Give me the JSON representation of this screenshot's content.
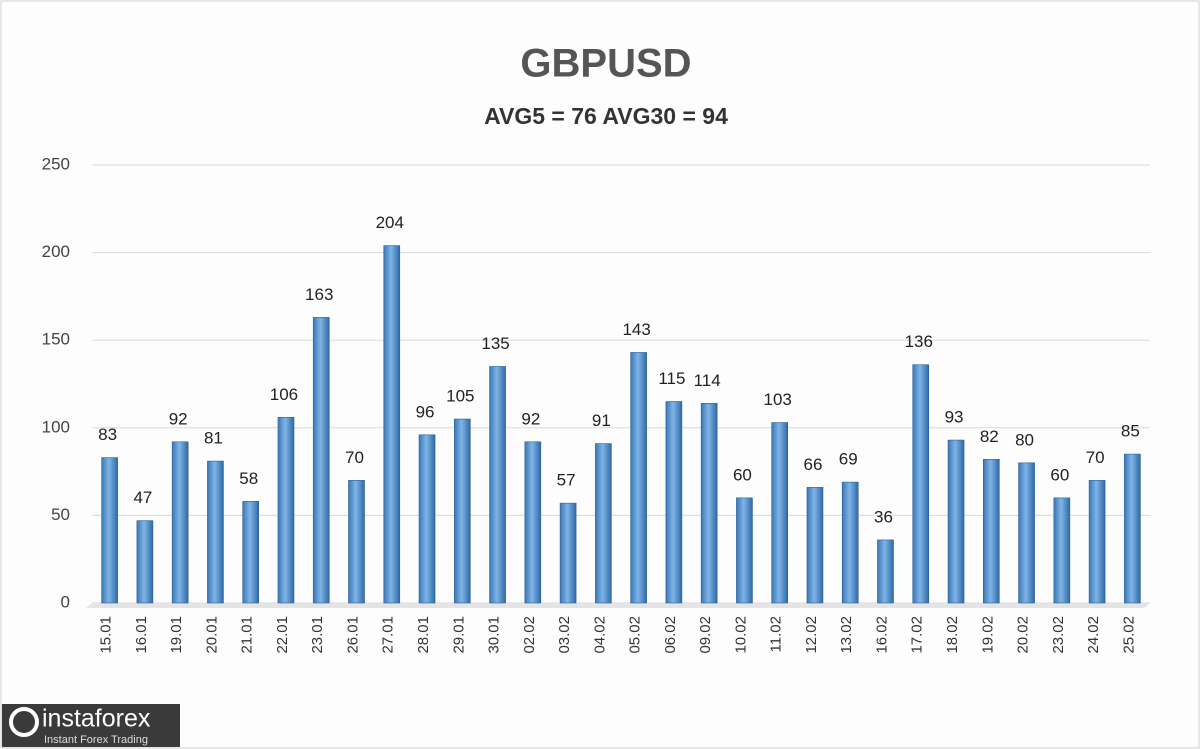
{
  "chart_data": {
    "type": "bar",
    "title": "GBPUSD",
    "subtitle": "AVG5 = 76 AVG30 = 94",
    "categories": [
      "15.01",
      "16.01",
      "19.01",
      "20.01",
      "21.01",
      "22.01",
      "23.01",
      "26.01",
      "27.01",
      "28.01",
      "29.01",
      "30.01",
      "02.02",
      "03.02",
      "04.02",
      "05.02",
      "06.02",
      "09.02",
      "10.02",
      "11.02",
      "12.02",
      "13.02",
      "16.02",
      "17.02",
      "18.02",
      "19.02",
      "20.02",
      "23.02",
      "24.02",
      "25.02"
    ],
    "values": [
      83,
      47,
      92,
      81,
      58,
      106,
      163,
      70,
      204,
      96,
      105,
      135,
      92,
      57,
      91,
      143,
      115,
      114,
      60,
      103,
      66,
      69,
      36,
      136,
      93,
      82,
      80,
      60,
      70,
      85
    ],
    "color": "#5b9bd5",
    "ylim": [
      0,
      250
    ],
    "yticks": [
      0,
      50,
      100,
      150,
      200,
      250
    ],
    "grid": true
  },
  "watermark": {
    "brand": "instaforex",
    "tagline": "Instant Forex Trading"
  }
}
